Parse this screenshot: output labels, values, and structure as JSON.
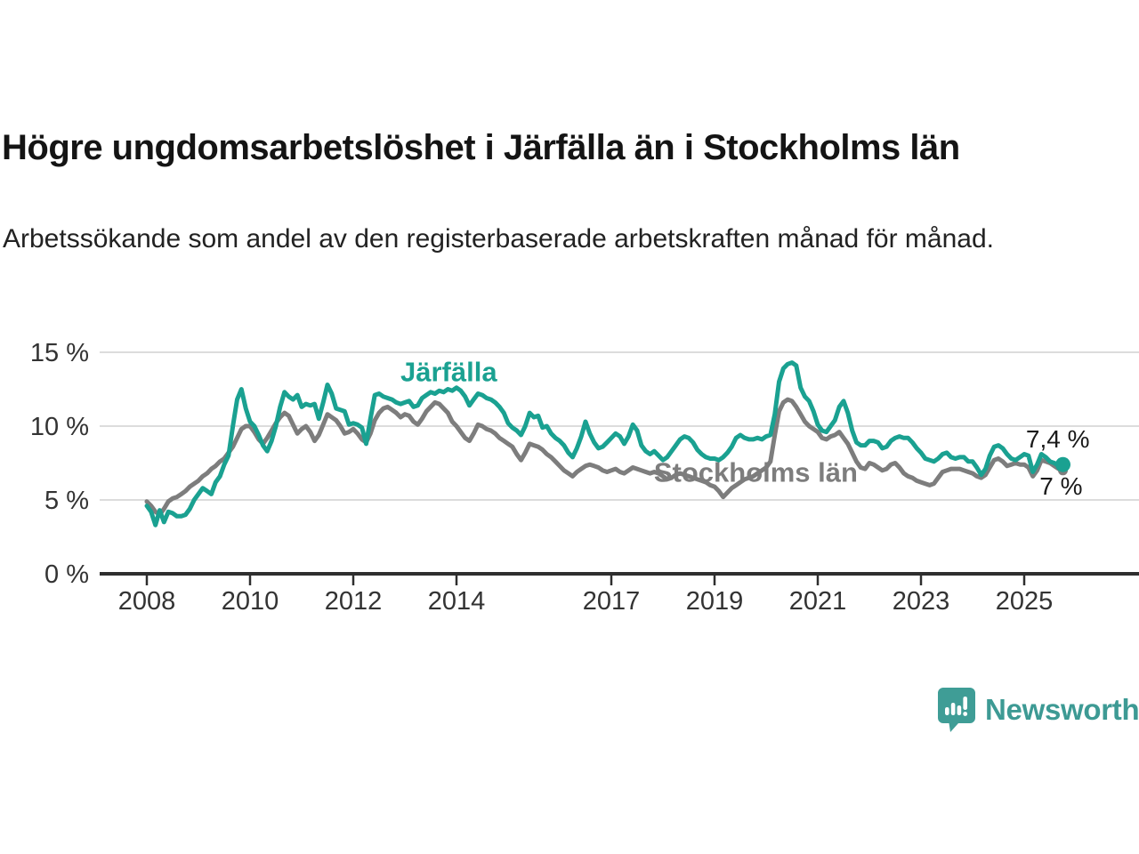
{
  "header": {
    "title": "Högre ungdomsarbetslöshet i Järfälla än i Stockholms län",
    "subtitle": "Arbetssökande som andel av den registerbaserade arbetskraften månad för månad."
  },
  "footer": {
    "brand": "Newsworthy"
  },
  "colors": {
    "jarfalla": "#1aa191",
    "stockholm": "#7d7d7d",
    "grid": "#dcdcdc",
    "axis": "#2e2e2e",
    "tick_text": "#333333",
    "annotation_text": "#1a1a1a",
    "logo": "#3f9d96"
  },
  "chart_data": {
    "type": "line",
    "title": "Högre ungdomsarbetslöshet i Järfälla än i Stockholms län",
    "subtitle": "Arbetssökande som andel av den registerbaserade arbetskraften månad för månad.",
    "xlabel": "",
    "ylabel": "",
    "grid": "horizontal-only",
    "legend_position": "inline-labels",
    "x_start_year": 2008,
    "points_per_year": 12,
    "x_end_year_fraction": 2025.75,
    "xlim": [
      2007.5,
      2026.3
    ],
    "ylim": [
      0,
      16
    ],
    "y_ticks": [
      0,
      5,
      10,
      15
    ],
    "y_tick_labels": [
      "0 %",
      "5 %",
      "10 %",
      "15 %"
    ],
    "x_ticks": [
      2008,
      2010,
      2012,
      2014,
      2017,
      2019,
      2021,
      2023,
      2025
    ],
    "x_tick_labels": [
      "2008",
      "2010",
      "2012",
      "2014",
      "2017",
      "2019",
      "2021",
      "2023",
      "2025"
    ],
    "series": [
      {
        "name": "Stockholms län",
        "color": "#7d7d7d",
        "end_label": "7 %",
        "last_value": 7.0,
        "dot_radius": 5.5,
        "end_label_dx": 22,
        "end_label_dy": 27,
        "label_x_year": 2019.8,
        "label_y_pct": 6.9,
        "values": [
          4.9,
          4.6,
          4.2,
          4.0,
          4.4,
          4.9,
          5.1,
          5.2,
          5.4,
          5.6,
          5.9,
          6.1,
          6.3,
          6.6,
          6.8,
          7.1,
          7.3,
          7.6,
          7.8,
          8.2,
          8.6,
          9.2,
          9.8,
          10.0,
          10.0,
          9.6,
          9.1,
          8.8,
          9.2,
          9.7,
          10.2,
          10.6,
          10.9,
          10.7,
          10.1,
          9.5,
          9.8,
          10.0,
          9.6,
          9.0,
          9.4,
          10.1,
          10.8,
          10.6,
          10.4,
          10.0,
          9.5,
          9.6,
          9.8,
          9.5,
          9.1,
          8.9,
          9.5,
          10.4,
          10.9,
          11.2,
          11.3,
          11.1,
          10.9,
          10.6,
          10.8,
          10.7,
          10.3,
          10.1,
          10.5,
          11.0,
          11.3,
          11.6,
          11.5,
          11.2,
          10.9,
          10.3,
          10.0,
          9.6,
          9.2,
          9.0,
          9.5,
          10.1,
          10.0,
          9.8,
          9.7,
          9.5,
          9.2,
          9.0,
          8.8,
          8.6,
          8.1,
          7.7,
          8.2,
          8.8,
          8.7,
          8.6,
          8.4,
          8.1,
          7.9,
          7.6,
          7.3,
          7.0,
          6.8,
          6.6,
          6.9,
          7.1,
          7.3,
          7.4,
          7.3,
          7.2,
          7.0,
          6.9,
          7.0,
          7.1,
          6.9,
          6.8,
          7.0,
          7.2,
          7.1,
          7.0,
          6.9,
          6.8,
          6.9,
          6.8,
          6.6,
          6.4,
          6.5,
          6.7,
          6.8,
          6.7,
          6.6,
          6.5,
          6.4,
          6.3,
          6.2,
          6.0,
          5.9,
          5.6,
          5.2,
          5.5,
          5.8,
          6.0,
          6.2,
          6.4,
          6.5,
          6.6,
          6.8,
          7.0,
          7.2,
          7.6,
          9.4,
          11.0,
          11.6,
          11.8,
          11.7,
          11.3,
          10.8,
          10.3,
          10.0,
          9.8,
          9.6,
          9.2,
          9.1,
          9.3,
          9.4,
          9.6,
          9.2,
          8.8,
          8.2,
          7.6,
          7.2,
          7.1,
          7.5,
          7.4,
          7.2,
          7.0,
          7.1,
          7.4,
          7.5,
          7.2,
          6.8,
          6.6,
          6.5,
          6.3,
          6.2,
          6.1,
          6.0,
          6.1,
          6.5,
          6.9,
          7.0,
          7.1,
          7.1,
          7.1,
          7.0,
          6.9,
          6.8,
          6.6,
          6.5,
          6.7,
          7.2,
          7.7,
          7.8,
          7.6,
          7.3,
          7.4,
          7.5,
          7.4,
          7.4,
          7.2,
          6.6,
          7.0,
          7.7,
          7.6,
          7.5,
          7.3,
          7.1,
          7.0
        ]
      },
      {
        "name": "Järfälla",
        "color": "#1aa191",
        "end_label": "7,4 %",
        "last_value": 7.4,
        "dot_radius": 8.5,
        "end_label_dx": 30,
        "end_label_dy": -19,
        "label_x_year": 2013.85,
        "label_y_pct": 13.7,
        "values": [
          4.6,
          4.2,
          3.3,
          4.3,
          3.5,
          4.2,
          4.1,
          3.9,
          3.9,
          4.0,
          4.4,
          5.0,
          5.4,
          5.8,
          5.6,
          5.4,
          6.2,
          6.6,
          7.4,
          8.0,
          10.0,
          11.8,
          12.5,
          11.2,
          10.3,
          10.0,
          9.4,
          8.7,
          8.3,
          9.0,
          10.0,
          11.3,
          12.3,
          12.0,
          11.8,
          12.1,
          11.3,
          11.5,
          11.4,
          11.5,
          10.5,
          11.6,
          12.8,
          12.2,
          11.2,
          11.1,
          11.0,
          10.1,
          10.2,
          10.1,
          9.9,
          8.8,
          10.5,
          12.1,
          12.2,
          12.0,
          11.9,
          11.8,
          11.6,
          11.5,
          11.6,
          11.7,
          11.3,
          11.4,
          11.9,
          12.1,
          12.3,
          12.2,
          12.4,
          12.3,
          12.5,
          12.4,
          12.6,
          12.4,
          12.0,
          11.4,
          11.8,
          12.2,
          12.1,
          11.9,
          11.8,
          11.6,
          11.3,
          10.9,
          10.2,
          9.9,
          9.7,
          9.4,
          10.0,
          10.9,
          10.6,
          10.7,
          9.9,
          10.0,
          9.5,
          9.2,
          9.0,
          8.7,
          8.2,
          7.9,
          8.5,
          9.3,
          10.3,
          9.5,
          8.9,
          8.5,
          8.6,
          8.9,
          9.2,
          9.5,
          9.3,
          8.8,
          9.3,
          10.1,
          9.7,
          8.7,
          8.3,
          8.1,
          8.3,
          8.0,
          7.7,
          7.9,
          8.3,
          8.7,
          9.1,
          9.3,
          9.2,
          8.9,
          8.4,
          8.1,
          7.9,
          7.8,
          7.8,
          7.7,
          7.9,
          8.2,
          8.6,
          9.2,
          9.4,
          9.2,
          9.1,
          9.1,
          9.2,
          9.1,
          9.3,
          9.4,
          10.8,
          13.0,
          13.9,
          14.2,
          14.3,
          14.1,
          12.6,
          12.0,
          11.7,
          11.0,
          10.1,
          9.7,
          9.6,
          10.0,
          10.4,
          11.3,
          11.7,
          10.9,
          9.7,
          8.9,
          8.7,
          8.7,
          9.0,
          9.0,
          8.9,
          8.5,
          8.6,
          9.0,
          9.2,
          9.3,
          9.2,
          9.2,
          8.9,
          8.5,
          8.2,
          7.8,
          7.7,
          7.6,
          7.8,
          8.1,
          8.2,
          7.9,
          7.8,
          7.9,
          7.9,
          7.6,
          7.6,
          7.2,
          6.7,
          7.1,
          8.0,
          8.6,
          8.7,
          8.5,
          8.1,
          7.8,
          7.7,
          7.9,
          8.1,
          8.0,
          6.9,
          7.4,
          8.1,
          7.9,
          7.6,
          7.5,
          7.3,
          7.4
        ]
      }
    ]
  }
}
